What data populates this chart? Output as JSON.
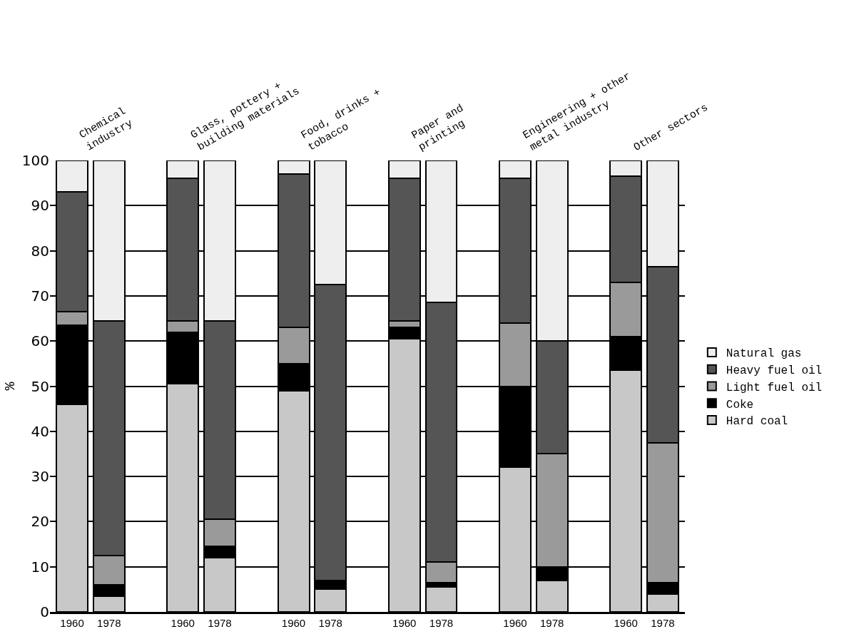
{
  "chart_data": {
    "type": "bar",
    "stacked": true,
    "ylabel": "%",
    "categories": [
      "1960",
      "1978",
      "1960",
      "1978",
      "1960",
      "1978",
      "1960",
      "1978",
      "1960",
      "1978",
      "1960",
      "1978"
    ],
    "annotations": [
      "Chemical\nindustry",
      "Glass, pottery +\nbuilding materials",
      "Food, drinks +\ntobacco",
      "Paper and\nprinting",
      "Engineering + other\nmetal industry",
      "Other sectors"
    ],
    "series": [
      {
        "name": "Hard coal",
        "color": "#c8c8c8",
        "values": [
          46,
          3.5,
          50.5,
          12,
          49,
          5,
          60.5,
          5.5,
          32,
          7,
          53.5,
          4
        ]
      },
      {
        "name": "Coke",
        "color": "#000000",
        "values": [
          17.5,
          2.5,
          11.5,
          2.5,
          6,
          2,
          2.5,
          1,
          18,
          3,
          7.5,
          2.5
        ]
      },
      {
        "name": "Light fuel oil",
        "color": "#9a9a9a",
        "values": [
          3,
          6.5,
          2.5,
          6,
          8,
          0,
          1.5,
          4.5,
          14,
          25,
          12,
          31
        ]
      },
      {
        "name": "Heavy fuel oil",
        "color": "#555555",
        "values": [
          26.5,
          52,
          31.5,
          44,
          34,
          65.5,
          31.5,
          57.5,
          32,
          25,
          23.5,
          39
        ]
      },
      {
        "name": "Natural gas",
        "color": "#eeeeee",
        "values": [
          7,
          35.5,
          4,
          35.5,
          3,
          27.5,
          4,
          31.5,
          4,
          40,
          3.5,
          23.5
        ]
      }
    ],
    "ylim": [
      0,
      100
    ],
    "yticks": [
      0,
      10,
      20,
      30,
      40,
      50,
      60,
      70,
      80,
      90,
      100
    ],
    "grid": "y",
    "legend": "right"
  }
}
